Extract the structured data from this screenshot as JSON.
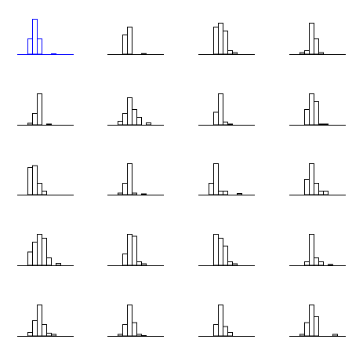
{
  "chart_data": [
    {
      "type": "bar",
      "values": [
        0,
        0,
        4,
        9,
        4,
        0,
        0,
        0.2,
        0,
        0
      ],
      "colors": {
        "stroke": "#0000ff"
      },
      "grid": false
    },
    {
      "type": "bar",
      "values": [
        0,
        0,
        0,
        5,
        7,
        0,
        0,
        0.25,
        0,
        0
      ],
      "colors": {
        "stroke": "#000000"
      },
      "grid": false
    },
    {
      "type": "bar",
      "values": [
        0,
        0,
        0,
        7,
        8,
        6,
        1,
        0.5,
        0,
        0
      ],
      "colors": {
        "stroke": "#000000"
      },
      "grid": false
    },
    {
      "type": "bar",
      "values": [
        0,
        0,
        0.5,
        1,
        8,
        4,
        0.5,
        0,
        0,
        0
      ],
      "colors": {
        "stroke": "#000000"
      },
      "grid": false
    },
    {
      "type": "bar",
      "values": [
        0,
        0,
        0.5,
        3,
        8,
        0,
        0.3,
        0,
        0,
        0
      ],
      "colors": {
        "stroke": "#000000"
      },
      "grid": false
    },
    {
      "type": "bar",
      "values": [
        0,
        0,
        1,
        3,
        7,
        4,
        2,
        0,
        0.6,
        0
      ],
      "colors": {
        "stroke": "#000000"
      },
      "grid": false
    },
    {
      "type": "bar",
      "values": [
        0,
        0,
        0,
        3.3,
        8,
        0.8,
        0.3,
        0,
        0,
        0
      ],
      "colors": {
        "stroke": "#000000"
      },
      "grid": false
    },
    {
      "type": "bar",
      "values": [
        0,
        0,
        0,
        4,
        8,
        6,
        0.3,
        0.3,
        0,
        0
      ],
      "colors": {
        "stroke": "#000000"
      },
      "grid": false
    },
    {
      "type": "bar",
      "values": [
        0,
        0,
        7,
        7.5,
        3,
        1,
        0,
        0,
        0,
        0
      ],
      "colors": {
        "stroke": "#000000"
      },
      "grid": false
    },
    {
      "type": "bar",
      "values": [
        0,
        0,
        0.5,
        3,
        8,
        0.5,
        0,
        0.3,
        0,
        0
      ],
      "colors": {
        "stroke": "#000000"
      },
      "grid": false
    },
    {
      "type": "bar",
      "values": [
        0,
        0,
        3,
        8,
        1,
        1,
        0,
        0,
        0.4,
        0
      ],
      "colors": {
        "stroke": "#000000"
      },
      "grid": false
    },
    {
      "type": "bar",
      "values": [
        0,
        0,
        0,
        4,
        8,
        3,
        1,
        1,
        0,
        0
      ],
      "colors": {
        "stroke": "#000000"
      },
      "grid": false
    },
    {
      "type": "bar",
      "values": [
        0,
        0,
        3.5,
        6,
        8,
        7,
        2,
        0,
        0.6,
        0
      ],
      "colors": {
        "stroke": "#000000"
      },
      "grid": false
    },
    {
      "type": "bar",
      "values": [
        0,
        0,
        0,
        3,
        8,
        7.5,
        1,
        0.5,
        0,
        0
      ],
      "colors": {
        "stroke": "#000000"
      },
      "grid": false
    },
    {
      "type": "bar",
      "values": [
        0,
        0,
        0,
        8,
        7,
        5,
        1,
        0.5,
        0,
        0
      ],
      "colors": {
        "stroke": "#000000"
      },
      "grid": false
    },
    {
      "type": "bar",
      "values": [
        0,
        0,
        0,
        1,
        8,
        2,
        1,
        0,
        0.3,
        0
      ],
      "colors": {
        "stroke": "#000000"
      },
      "grid": false
    },
    {
      "type": "bar",
      "values": [
        0,
        0,
        1,
        4,
        8,
        3,
        0.8,
        0.5,
        0,
        0
      ],
      "colors": {
        "stroke": "#000000"
      },
      "grid": false
    },
    {
      "type": "bar",
      "values": [
        0,
        0,
        0.5,
        3,
        8,
        3.5,
        0.5,
        0.2,
        0,
        0
      ],
      "colors": {
        "stroke": "#000000"
      },
      "grid": false
    },
    {
      "type": "bar",
      "values": [
        0,
        0,
        0,
        3,
        8,
        2.5,
        1,
        0,
        0,
        0
      ],
      "colors": {
        "stroke": "#000000"
      },
      "grid": false
    },
    {
      "type": "bar",
      "values": [
        0,
        0,
        0.5,
        3.5,
        8,
        5,
        0,
        0,
        0,
        0.5
      ],
      "colors": {
        "stroke": "#000000"
      },
      "grid": false
    }
  ]
}
